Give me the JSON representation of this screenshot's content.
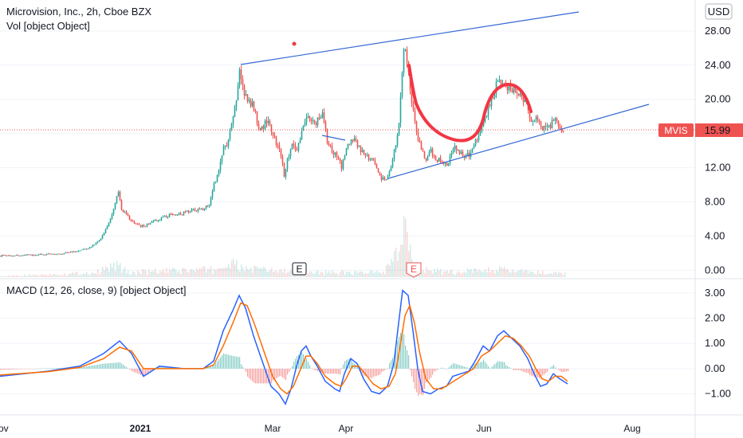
{
  "chart_data": [
    {
      "type": "candlestick",
      "title": "Microvision, Inc., 2h, Cboe BZX",
      "volume_label": "Vol [object Object]",
      "currency": "USD",
      "y_ticks": [
        "28.00",
        "24.00",
        "20.00",
        "16.00",
        "12.00",
        "8.00",
        "4.00",
        "0.00"
      ],
      "ylim": [
        -0.8,
        30.5
      ],
      "last_price": {
        "symbol": "MVIS",
        "value": "15.99"
      },
      "x_ticks": [
        "Nov",
        "2021",
        "Mar",
        "Apr",
        "Jun",
        "Aug"
      ],
      "earnings_markers": [
        "E",
        "E"
      ],
      "price_path": [
        [
          0,
          1.7
        ],
        [
          40,
          1.8
        ],
        [
          80,
          2.0
        ],
        [
          110,
          2.5
        ],
        [
          125,
          3.5
        ],
        [
          135,
          5.2
        ],
        [
          142,
          7.0
        ],
        [
          148,
          9.4
        ],
        [
          152,
          7.2
        ],
        [
          160,
          6.2
        ],
        [
          170,
          5.4
        ],
        [
          180,
          5.1
        ],
        [
          195,
          5.8
        ],
        [
          210,
          6.4
        ],
        [
          225,
          6.6
        ],
        [
          240,
          7.0
        ],
        [
          255,
          7.2
        ],
        [
          262,
          7.6
        ],
        [
          268,
          10.0
        ],
        [
          275,
          12.0
        ],
        [
          280,
          14.5
        ],
        [
          285,
          14.8
        ],
        [
          290,
          17.5
        ],
        [
          295,
          19.0
        ],
        [
          300,
          23.5
        ],
        [
          305,
          21.0
        ],
        [
          310,
          20.0
        ],
        [
          318,
          19.0
        ],
        [
          325,
          16.0
        ],
        [
          333,
          17.5
        ],
        [
          340,
          16.5
        ],
        [
          346,
          15.0
        ],
        [
          352,
          13.5
        ],
        [
          356,
          11.0
        ],
        [
          360,
          13.0
        ],
        [
          366,
          15.0
        ],
        [
          372,
          14.0
        ],
        [
          378,
          16.5
        ],
        [
          385,
          18.0
        ],
        [
          392,
          17.2
        ],
        [
          398,
          17.5
        ],
        [
          404,
          18.5
        ],
        [
          410,
          15.0
        ],
        [
          416,
          14.0
        ],
        [
          422,
          13.5
        ],
        [
          428,
          12.0
        ],
        [
          433,
          14.0
        ],
        [
          440,
          15.5
        ],
        [
          446,
          15.0
        ],
        [
          452,
          14.0
        ],
        [
          458,
          13.5
        ],
        [
          464,
          13.0
        ],
        [
          470,
          12.5
        ],
        [
          476,
          11.0
        ],
        [
          482,
          10.5
        ],
        [
          487,
          11.0
        ],
        [
          492,
          13.0
        ],
        [
          497,
          15.0
        ],
        [
          501,
          18.5
        ],
        [
          504,
          23.0
        ],
        [
          507,
          27.0
        ],
        [
          510,
          24.0
        ],
        [
          514,
          21.5
        ],
        [
          517,
          19.0
        ],
        [
          522,
          16.0
        ],
        [
          527,
          14.5
        ],
        [
          533,
          13.0
        ],
        [
          540,
          14.0
        ],
        [
          548,
          13.0
        ],
        [
          556,
          12.5
        ],
        [
          562,
          12.5
        ],
        [
          568,
          14.5
        ],
        [
          575,
          14.0
        ],
        [
          582,
          13.5
        ],
        [
          588,
          13.5
        ],
        [
          594,
          14.5
        ],
        [
          600,
          16.0
        ],
        [
          606,
          17.5
        ],
        [
          612,
          19.0
        ],
        [
          618,
          20.5
        ],
        [
          624,
          22.5
        ],
        [
          630,
          22.0
        ],
        [
          636,
          21.5
        ],
        [
          642,
          21.0
        ],
        [
          648,
          21.0
        ],
        [
          654,
          20.0
        ],
        [
          660,
          19.5
        ],
        [
          666,
          17.5
        ],
        [
          672,
          18.0
        ],
        [
          678,
          17.0
        ],
        [
          684,
          16.5
        ],
        [
          690,
          17.0
        ],
        [
          696,
          17.5
        ],
        [
          702,
          16.5
        ],
        [
          707,
          15.99
        ]
      ],
      "volume_path": [
        [
          0,
          0.05
        ],
        [
          120,
          0.3
        ],
        [
          145,
          0.8
        ],
        [
          160,
          0.3
        ],
        [
          270,
          0.5
        ],
        [
          290,
          0.9
        ],
        [
          300,
          0.6
        ],
        [
          350,
          0.4
        ],
        [
          420,
          0.3
        ],
        [
          480,
          0.3
        ],
        [
          500,
          1.5
        ],
        [
          505,
          3.2
        ],
        [
          510,
          2.0
        ],
        [
          520,
          0.7
        ],
        [
          560,
          0.3
        ],
        [
          620,
          0.5
        ],
        [
          640,
          0.4
        ],
        [
          707,
          0.2
        ]
      ]
    },
    {
      "type": "line",
      "title": "MACD (12, 26, close, 9) [object Object]",
      "y_ticks": [
        "3.00",
        "2.00",
        "1.00",
        "0.00",
        "−1.00"
      ],
      "ylim": [
        -1.8,
        3.5
      ],
      "series": [
        {
          "name": "",
          "color": "#2962FF",
          "points": [
            [
              0,
              -0.3
            ],
            [
              60,
              -0.1
            ],
            [
              100,
              0.1
            ],
            [
              130,
              0.6
            ],
            [
              150,
              1.1
            ],
            [
              165,
              0.6
            ],
            [
              180,
              -0.3
            ],
            [
              200,
              0.1
            ],
            [
              230,
              0.0
            ],
            [
              255,
              0.0
            ],
            [
              268,
              0.3
            ],
            [
              280,
              1.5
            ],
            [
              292,
              2.3
            ],
            [
              300,
              2.9
            ],
            [
              308,
              2.4
            ],
            [
              318,
              1.3
            ],
            [
              330,
              0.2
            ],
            [
              340,
              -0.7
            ],
            [
              350,
              -1.0
            ],
            [
              358,
              -1.4
            ],
            [
              365,
              -0.8
            ],
            [
              372,
              0.1
            ],
            [
              378,
              0.7
            ],
            [
              384,
              0.9
            ],
            [
              390,
              0.5
            ],
            [
              398,
              0.1
            ],
            [
              408,
              -0.5
            ],
            [
              420,
              -0.8
            ],
            [
              426,
              -0.9
            ],
            [
              432,
              -0.2
            ],
            [
              440,
              0.4
            ],
            [
              448,
              0.2
            ],
            [
              456,
              -0.4
            ],
            [
              466,
              -0.9
            ],
            [
              476,
              -1.0
            ],
            [
              486,
              -0.7
            ],
            [
              494,
              0.2
            ],
            [
              500,
              1.8
            ],
            [
              505,
              3.1
            ],
            [
              512,
              2.9
            ],
            [
              518,
              1.5
            ],
            [
              524,
              0.0
            ],
            [
              530,
              -0.9
            ],
            [
              540,
              -1.0
            ],
            [
              550,
              -0.8
            ],
            [
              560,
              -0.7
            ],
            [
              568,
              -0.3
            ],
            [
              578,
              -0.2
            ],
            [
              588,
              -0.1
            ],
            [
              596,
              0.3
            ],
            [
              606,
              0.9
            ],
            [
              614,
              0.7
            ],
            [
              624,
              1.3
            ],
            [
              632,
              1.5
            ],
            [
              642,
              1.2
            ],
            [
              652,
              0.9
            ],
            [
              662,
              0.4
            ],
            [
              670,
              -0.2
            ],
            [
              678,
              -0.7
            ],
            [
              686,
              -0.6
            ],
            [
              694,
              -0.2
            ],
            [
              702,
              -0.4
            ],
            [
              712,
              -0.6
            ]
          ]
        },
        {
          "name": "",
          "color": "#FF6D00",
          "points": [
            [
              0,
              -0.25
            ],
            [
              60,
              -0.12
            ],
            [
              100,
              0.05
            ],
            [
              130,
              0.4
            ],
            [
              150,
              0.85
            ],
            [
              165,
              0.7
            ],
            [
              180,
              0.0
            ],
            [
              200,
              0.0
            ],
            [
              230,
              0.0
            ],
            [
              255,
              0.0
            ],
            [
              268,
              0.15
            ],
            [
              280,
              0.9
            ],
            [
              292,
              1.8
            ],
            [
              302,
              2.6
            ],
            [
              310,
              2.5
            ],
            [
              320,
              1.7
            ],
            [
              332,
              0.6
            ],
            [
              342,
              -0.3
            ],
            [
              352,
              -0.8
            ],
            [
              360,
              -1.0
            ],
            [
              368,
              -0.7
            ],
            [
              376,
              -0.1
            ],
            [
              384,
              0.5
            ],
            [
              390,
              0.5
            ],
            [
              398,
              0.2
            ],
            [
              408,
              -0.3
            ],
            [
              420,
              -0.6
            ],
            [
              428,
              -0.7
            ],
            [
              434,
              -0.4
            ],
            [
              442,
              0.1
            ],
            [
              450,
              0.1
            ],
            [
              458,
              -0.2
            ],
            [
              468,
              -0.6
            ],
            [
              478,
              -0.8
            ],
            [
              488,
              -0.7
            ],
            [
              496,
              -0.2
            ],
            [
              502,
              0.9
            ],
            [
              508,
              2.1
            ],
            [
              514,
              2.5
            ],
            [
              520,
              1.8
            ],
            [
              526,
              0.7
            ],
            [
              534,
              -0.4
            ],
            [
              544,
              -0.8
            ],
            [
              554,
              -0.8
            ],
            [
              564,
              -0.6
            ],
            [
              574,
              -0.4
            ],
            [
              584,
              -0.2
            ],
            [
              594,
              0.0
            ],
            [
              604,
              0.5
            ],
            [
              614,
              0.7
            ],
            [
              624,
              1.0
            ],
            [
              634,
              1.3
            ],
            [
              644,
              1.2
            ],
            [
              654,
              0.9
            ],
            [
              664,
              0.5
            ],
            [
              672,
              0.0
            ],
            [
              680,
              -0.4
            ],
            [
              688,
              -0.5
            ],
            [
              696,
              -0.3
            ],
            [
              704,
              -0.3
            ],
            [
              712,
              -0.5
            ]
          ]
        }
      ]
    }
  ],
  "annotations": {
    "trendlines_color": "#3367D6",
    "curve_color": "#F23645",
    "marker_dot_color": "#F23645"
  },
  "colors": {
    "up": "#26A69A",
    "down": "#EF5350",
    "price_line": "#EF5350",
    "grid": "#F0F3FA",
    "border": "#E0E3EB"
  }
}
